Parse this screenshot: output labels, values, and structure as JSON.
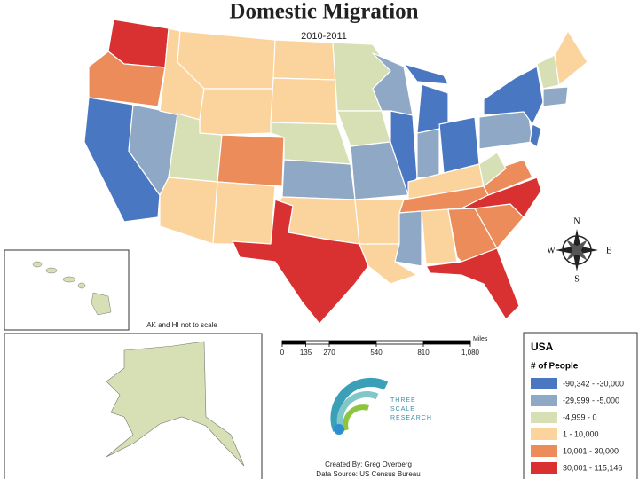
{
  "header": {
    "title": "Domestic Migration",
    "subtitle": "2010-2011"
  },
  "inset_note": "AK and HI not to scale",
  "compass": {
    "north": "N",
    "east": "E",
    "south": "S",
    "west": "W"
  },
  "scale_bar": {
    "ticks": [
      0,
      135,
      270,
      540,
      810,
      {
        "value": 1080,
        "label": "1,080"
      }
    ],
    "unit": "Miles"
  },
  "logo": {
    "lines": [
      "THREE",
      "SCALE",
      "RESEARCH"
    ]
  },
  "credits": [
    "Created By: Greg Overberg",
    "Data Source: US Census Bureau"
  ],
  "legend": {
    "title": "USA",
    "subtitle": "# of People",
    "items": [
      {
        "label": "-90,342 - -30,000",
        "color": "#4a77c2"
      },
      {
        "label": "-29,999 - -5,000",
        "color": "#8ea8c5"
      },
      {
        "label": "-4,999 - 0",
        "color": "#d6e0b4"
      },
      {
        "label": "1 - 10,000",
        "color": "#fbd39c"
      },
      {
        "label": "10,001 - 30,000",
        "color": "#ec8c5a"
      },
      {
        "label": "30,001 - 115,146",
        "color": "#d93131"
      }
    ]
  }
}
